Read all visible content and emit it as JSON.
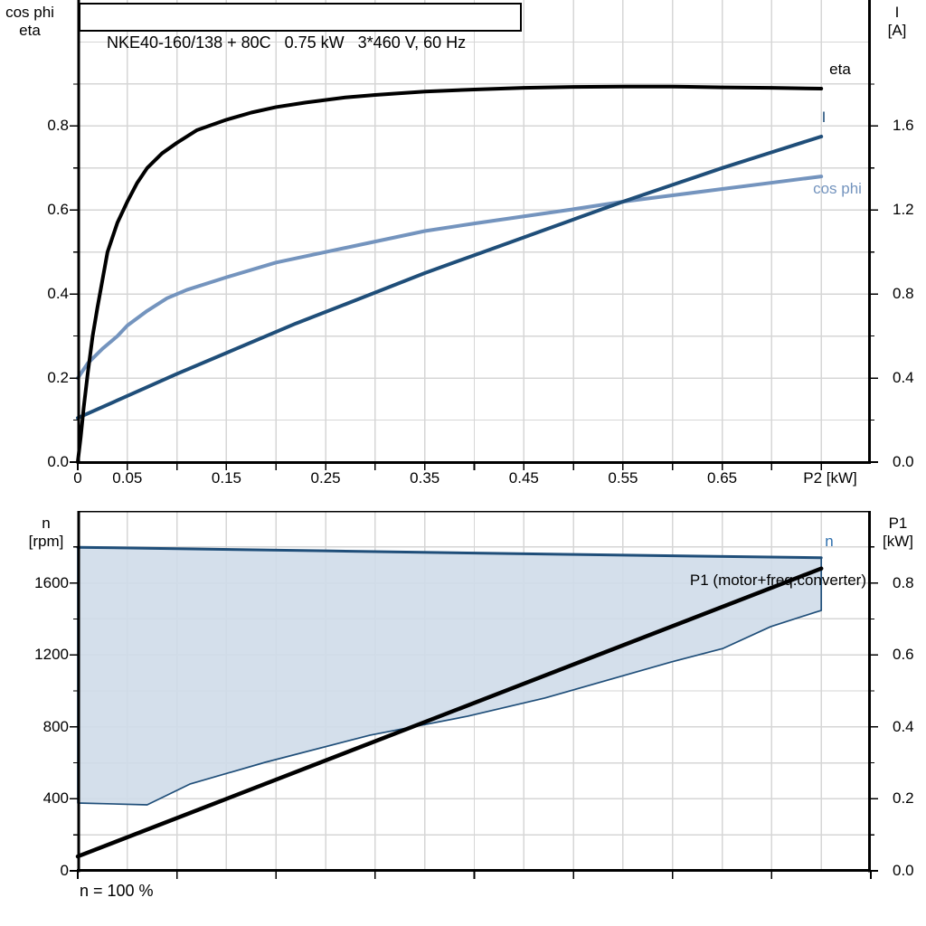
{
  "colors": {
    "black": "#000000",
    "dark_blue": "#1f4e79",
    "light_blue": "#7494be",
    "n_label_blue": "#2e6fad",
    "area_fill": "#cfdce9",
    "grid": "#d6d6d6",
    "background": "#ffffff"
  },
  "chart_data": [
    {
      "id": "motor-curves",
      "type": "line",
      "title": "NKE40-160/138 + 80C   0.75 kW   3*460 V, 60 Hz",
      "x_axis": {
        "label": "P2 [kW]",
        "range": [
          0,
          0.8
        ],
        "minor_step": 0.05,
        "tick_labels": [
          {
            "v": 0,
            "t": "0"
          },
          {
            "v": 0.05,
            "t": "0.05"
          },
          {
            "v": 0.15,
            "t": "0.15"
          },
          {
            "v": 0.25,
            "t": "0.25"
          },
          {
            "v": 0.35,
            "t": "0.35"
          },
          {
            "v": 0.45,
            "t": "0.45"
          },
          {
            "v": 0.55,
            "t": "0.55"
          },
          {
            "v": 0.65,
            "t": "0.65"
          }
        ]
      },
      "left_axis": {
        "label_lines": [
          "cos phi",
          "eta"
        ],
        "range": [
          0,
          1.1
        ],
        "grid_step": 0.1,
        "tick_labels": [
          {
            "v": 0.0,
            "t": "0.0"
          },
          {
            "v": 0.2,
            "t": "0.2"
          },
          {
            "v": 0.4,
            "t": "0.4"
          },
          {
            "v": 0.6,
            "t": "0.6"
          },
          {
            "v": 0.8,
            "t": "0.8"
          }
        ]
      },
      "right_axis": {
        "label_lines": [
          "I",
          "[A]"
        ],
        "range": [
          0,
          2.2
        ],
        "tick_labels": [
          {
            "v": 0.0,
            "t": "0.0"
          },
          {
            "v": 0.4,
            "t": "0.4"
          },
          {
            "v": 0.8,
            "t": "0.8"
          },
          {
            "v": 1.2,
            "t": "1.2"
          },
          {
            "v": 1.6,
            "t": "1.6"
          }
        ]
      },
      "series": [
        {
          "name": "cos phi",
          "axis": "left",
          "color": "#7494be",
          "points": [
            [
              0,
              0.2
            ],
            [
              0.01,
              0.235
            ],
            [
              0.025,
              0.27
            ],
            [
              0.04,
              0.3
            ],
            [
              0.05,
              0.325
            ],
            [
              0.07,
              0.36
            ],
            [
              0.09,
              0.39
            ],
            [
              0.11,
              0.41
            ],
            [
              0.15,
              0.44
            ],
            [
              0.2,
              0.475
            ],
            [
              0.25,
              0.5
            ],
            [
              0.3,
              0.525
            ],
            [
              0.35,
              0.55
            ],
            [
              0.4,
              0.568
            ],
            [
              0.45,
              0.585
            ],
            [
              0.5,
              0.602
            ],
            [
              0.55,
              0.62
            ],
            [
              0.6,
              0.635
            ],
            [
              0.65,
              0.65
            ],
            [
              0.7,
              0.665
            ],
            [
              0.75,
              0.68
            ]
          ]
        },
        {
          "name": "I",
          "axis": "right",
          "color": "#1f4e79",
          "points": [
            [
              0,
              0.21
            ],
            [
              0.05,
              0.315
            ],
            [
              0.1,
              0.42
            ],
            [
              0.16,
              0.54
            ],
            [
              0.22,
              0.66
            ],
            [
              0.28,
              0.77
            ],
            [
              0.35,
              0.9
            ],
            [
              0.4,
              0.985
            ],
            [
              0.45,
              1.07
            ],
            [
              0.5,
              1.155
            ],
            [
              0.55,
              1.24
            ],
            [
              0.6,
              1.32
            ],
            [
              0.65,
              1.4
            ],
            [
              0.7,
              1.475
            ],
            [
              0.75,
              1.55
            ]
          ]
        },
        {
          "name": "eta",
          "axis": "left",
          "color": "#000000",
          "points": [
            [
              0,
              0
            ],
            [
              0.003,
              0.06
            ],
            [
              0.006,
              0.13
            ],
            [
              0.01,
              0.21
            ],
            [
              0.015,
              0.3
            ],
            [
              0.02,
              0.37
            ],
            [
              0.03,
              0.5
            ],
            [
              0.04,
              0.57
            ],
            [
              0.05,
              0.62
            ],
            [
              0.06,
              0.665
            ],
            [
              0.07,
              0.7
            ],
            [
              0.085,
              0.735
            ],
            [
              0.1,
              0.76
            ],
            [
              0.12,
              0.79
            ],
            [
              0.15,
              0.815
            ],
            [
              0.175,
              0.832
            ],
            [
              0.2,
              0.845
            ],
            [
              0.23,
              0.856
            ],
            [
              0.27,
              0.868
            ],
            [
              0.3,
              0.874
            ],
            [
              0.35,
              0.882
            ],
            [
              0.4,
              0.887
            ],
            [
              0.45,
              0.891
            ],
            [
              0.5,
              0.893
            ],
            [
              0.55,
              0.894
            ],
            [
              0.6,
              0.894
            ],
            [
              0.65,
              0.892
            ],
            [
              0.7,
              0.891
            ],
            [
              0.75,
              0.889
            ]
          ]
        }
      ]
    },
    {
      "id": "speed-power",
      "type": "line-area",
      "x_axis": {
        "range": [
          0,
          0.8
        ],
        "minor_step": 0.1,
        "note": "n = 100 %"
      },
      "left_axis": {
        "label_lines": [
          "n",
          "[rpm]"
        ],
        "range": [
          0,
          2000
        ],
        "grid_step": 200,
        "tick_labels": [
          {
            "v": 0,
            "t": "0"
          },
          {
            "v": 400,
            "t": "400"
          },
          {
            "v": 800,
            "t": "800"
          },
          {
            "v": 1200,
            "t": "1200"
          },
          {
            "v": 1600,
            "t": "1600"
          }
        ]
      },
      "right_axis": {
        "label_lines": [
          "P1",
          "[kW]"
        ],
        "range": [
          0,
          1.0
        ],
        "tick_labels": [
          {
            "v": 0.0,
            "t": "0.0"
          },
          {
            "v": 0.2,
            "t": "0.2"
          },
          {
            "v": 0.4,
            "t": "0.4"
          },
          {
            "v": 0.6,
            "t": "0.6"
          },
          {
            "v": 0.8,
            "t": "0.8"
          }
        ]
      },
      "series": [
        {
          "name": "n",
          "axis": "left",
          "type": "area",
          "color": "#1f4e79",
          "fill": "#cfdce9",
          "top_line": [
            [
              0,
              1798
            ],
            [
              0.25,
              1778
            ],
            [
              0.5,
              1758
            ],
            [
              0.75,
              1740
            ]
          ],
          "outline": [
            [
              0,
              1798
            ],
            [
              0.25,
              1778
            ],
            [
              0.5,
              1758
            ],
            [
              0.75,
              1740
            ],
            [
              0.75,
              1447
            ],
            [
              0.744,
              1437
            ],
            [
              0.699,
              1357
            ],
            [
              0.651,
              1236
            ],
            [
              0.599,
              1161
            ],
            [
              0.471,
              960
            ],
            [
              0.393,
              859
            ],
            [
              0.295,
              754
            ],
            [
              0.189,
              603
            ],
            [
              0.113,
              482
            ],
            [
              0.07,
              367
            ],
            [
              0,
              377
            ]
          ]
        },
        {
          "name": "P1 (motor+freq.converter)",
          "axis": "right",
          "type": "line",
          "color": "#000000",
          "points": [
            [
              0,
              0.04
            ],
            [
              0.75,
              0.84
            ]
          ]
        }
      ]
    }
  ]
}
